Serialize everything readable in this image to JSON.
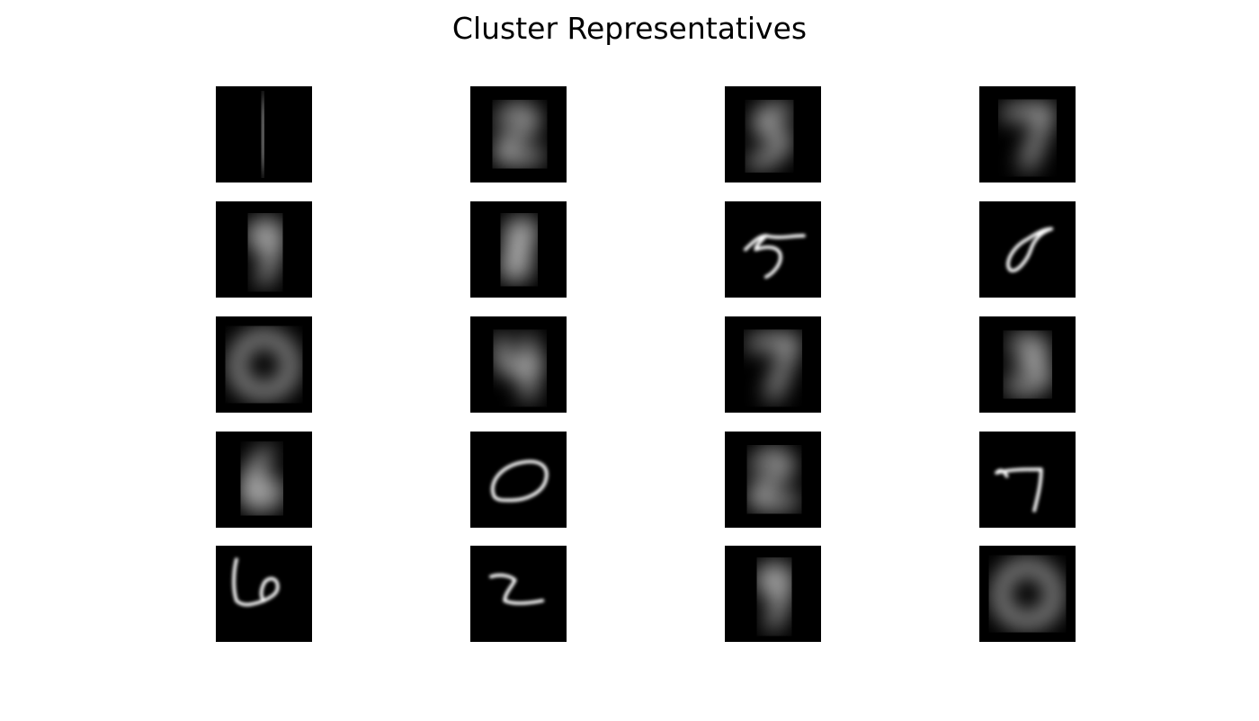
{
  "figure": {
    "title": "Cluster Representatives"
  },
  "chart_data": {
    "type": "image_grid",
    "title": "Cluster Representatives",
    "rows": 5,
    "cols": 4,
    "colormap": "gray",
    "axes_visible": false,
    "background_color": "#000000",
    "stroke_color": "#ffffff",
    "panels": [
      {
        "digit": "1",
        "style": "mean"
      },
      {
        "digit": "2",
        "style": "mean"
      },
      {
        "digit": "5",
        "style": "mean"
      },
      {
        "digit": "7",
        "style": "mean"
      },
      {
        "digit": "9",
        "style": "mean"
      },
      {
        "digit": "8",
        "style": "mean"
      },
      {
        "digit": "5",
        "style": "sample"
      },
      {
        "digit": "8",
        "style": "sample"
      },
      {
        "digit": "0",
        "style": "mean"
      },
      {
        "digit": "4",
        "style": "mean"
      },
      {
        "digit": "7",
        "style": "mean"
      },
      {
        "digit": "3",
        "style": "mean"
      },
      {
        "digit": "6",
        "style": "mean"
      },
      {
        "digit": "0",
        "style": "sample"
      },
      {
        "digit": "2",
        "style": "mean"
      },
      {
        "digit": "7",
        "style": "sample"
      },
      {
        "digit": "6",
        "style": "sample"
      },
      {
        "digit": "2",
        "style": "sample"
      },
      {
        "digit": "9",
        "style": "mean"
      },
      {
        "digit": "0",
        "style": "mean"
      }
    ]
  }
}
